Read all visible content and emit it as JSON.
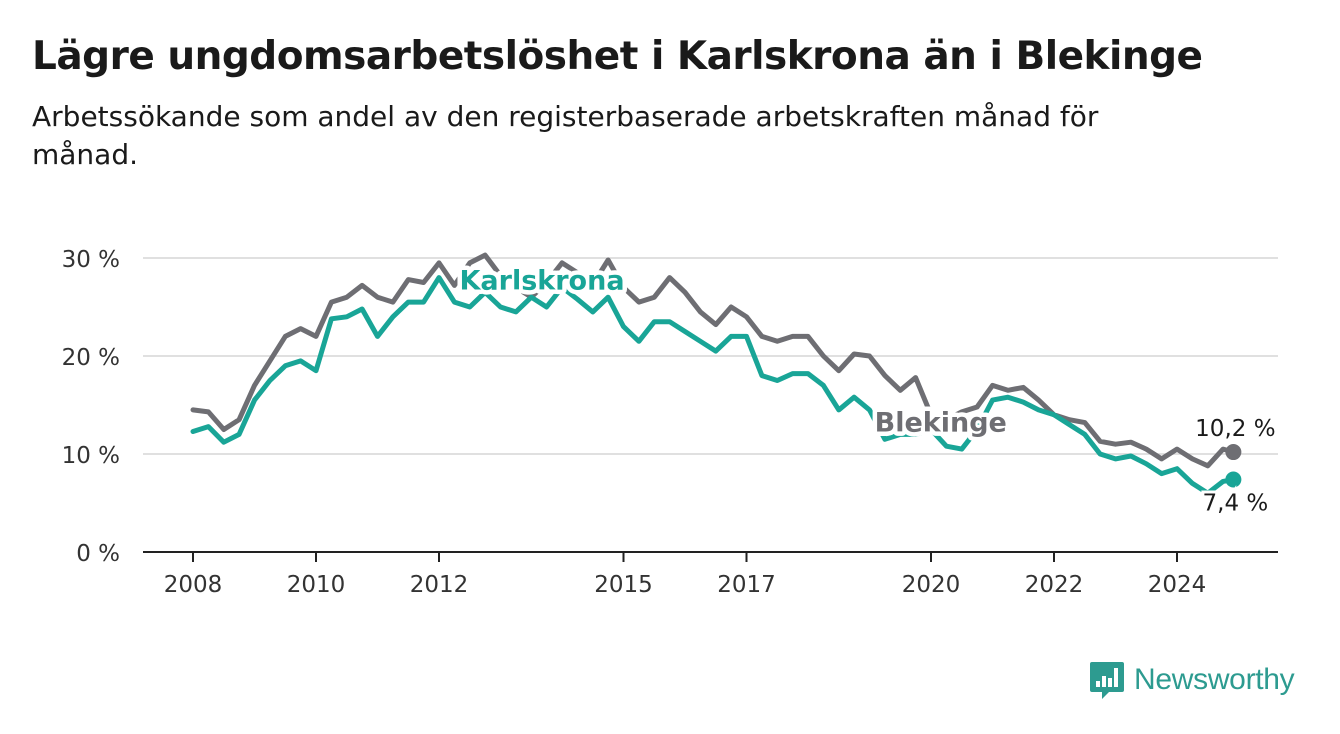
{
  "header": {
    "title": "Lägre ungdomsarbetslöshet i Karlskrona än i Blekinge",
    "subtitle": "Arbetssökande som andel av den registerbaserade arbetskraften månad för månad."
  },
  "brand": {
    "name": "Newsworthy",
    "icon": "newsworthy-logo-icon",
    "color": "#2d9b90"
  },
  "chart_data": {
    "type": "line",
    "x_tick_labels": [
      "2008",
      "2010",
      "2012",
      "2015",
      "2017",
      "2020",
      "2022",
      "2024"
    ],
    "y_tick_labels": [
      "0 %",
      "10 %",
      "20 %",
      "30 %"
    ],
    "ylim": [
      0,
      30
    ],
    "grid": true,
    "legend": "inline labels",
    "series": [
      {
        "name": "Blekinge",
        "color": "#6e6e73",
        "end_label": "10,2 %",
        "points": [
          [
            "2008-01",
            14.5
          ],
          [
            "2008-04",
            14.3
          ],
          [
            "2008-07",
            12.5
          ],
          [
            "2008-10",
            13.5
          ],
          [
            "2009-01",
            17.0
          ],
          [
            "2009-04",
            19.5
          ],
          [
            "2009-07",
            22.0
          ],
          [
            "2009-10",
            22.8
          ],
          [
            "2010-01",
            22.0
          ],
          [
            "2010-04",
            25.5
          ],
          [
            "2010-07",
            26.0
          ],
          [
            "2010-10",
            27.2
          ],
          [
            "2011-01",
            26.0
          ],
          [
            "2011-04",
            25.5
          ],
          [
            "2011-07",
            27.8
          ],
          [
            "2011-10",
            27.5
          ],
          [
            "2012-01",
            29.5
          ],
          [
            "2012-04",
            27.2
          ],
          [
            "2012-07",
            29.5
          ],
          [
            "2012-10",
            30.3
          ],
          [
            "2013-01",
            28.2
          ],
          [
            "2013-04",
            27.0
          ],
          [
            "2013-07",
            26.0
          ],
          [
            "2013-10",
            27.5
          ],
          [
            "2014-01",
            29.5
          ],
          [
            "2014-04",
            28.5
          ],
          [
            "2014-07",
            27.3
          ],
          [
            "2014-10",
            29.8
          ],
          [
            "2015-01",
            27.0
          ],
          [
            "2015-04",
            25.5
          ],
          [
            "2015-07",
            26.0
          ],
          [
            "2015-10",
            28.0
          ],
          [
            "2016-01",
            26.5
          ],
          [
            "2016-04",
            24.5
          ],
          [
            "2016-07",
            23.2
          ],
          [
            "2016-10",
            25.0
          ],
          [
            "2017-01",
            24.0
          ],
          [
            "2017-04",
            22.0
          ],
          [
            "2017-07",
            21.5
          ],
          [
            "2017-10",
            22.0
          ],
          [
            "2018-01",
            22.0
          ],
          [
            "2018-04",
            20.0
          ],
          [
            "2018-07",
            18.5
          ],
          [
            "2018-10",
            20.2
          ],
          [
            "2019-01",
            20.0
          ],
          [
            "2019-04",
            18.0
          ],
          [
            "2019-07",
            16.5
          ],
          [
            "2019-10",
            17.8
          ],
          [
            "2020-01",
            14.0
          ],
          [
            "2020-04",
            13.5
          ],
          [
            "2020-07",
            14.3
          ],
          [
            "2020-10",
            14.8
          ],
          [
            "2021-01",
            17.0
          ],
          [
            "2021-04",
            16.5
          ],
          [
            "2021-07",
            16.8
          ],
          [
            "2021-10",
            15.5
          ],
          [
            "2022-01",
            14.0
          ],
          [
            "2022-04",
            13.5
          ],
          [
            "2022-07",
            13.2
          ],
          [
            "2022-10",
            11.3
          ],
          [
            "2023-01",
            11.0
          ],
          [
            "2023-04",
            11.2
          ],
          [
            "2023-07",
            10.5
          ],
          [
            "2023-10",
            9.5
          ],
          [
            "2024-01",
            10.5
          ],
          [
            "2024-04",
            9.5
          ],
          [
            "2024-07",
            8.8
          ],
          [
            "2024-10",
            10.5
          ],
          [
            "2024-12",
            10.2
          ]
        ]
      },
      {
        "name": "Karlskrona",
        "color": "#19a597",
        "end_label": "7,4 %",
        "points": [
          [
            "2008-01",
            12.3
          ],
          [
            "2008-04",
            12.8
          ],
          [
            "2008-07",
            11.2
          ],
          [
            "2008-10",
            12.0
          ],
          [
            "2009-01",
            15.5
          ],
          [
            "2009-04",
            17.5
          ],
          [
            "2009-07",
            19.0
          ],
          [
            "2009-10",
            19.5
          ],
          [
            "2010-01",
            18.5
          ],
          [
            "2010-04",
            23.8
          ],
          [
            "2010-07",
            24.0
          ],
          [
            "2010-10",
            24.8
          ],
          [
            "2011-01",
            22.0
          ],
          [
            "2011-04",
            24.0
          ],
          [
            "2011-07",
            25.5
          ],
          [
            "2011-10",
            25.5
          ],
          [
            "2012-01",
            28.0
          ],
          [
            "2012-04",
            25.5
          ],
          [
            "2012-07",
            25.0
          ],
          [
            "2012-10",
            26.5
          ],
          [
            "2013-01",
            25.0
          ],
          [
            "2013-04",
            24.5
          ],
          [
            "2013-07",
            26.0
          ],
          [
            "2013-10",
            25.0
          ],
          [
            "2014-01",
            27.0
          ],
          [
            "2014-04",
            25.8
          ],
          [
            "2014-07",
            24.5
          ],
          [
            "2014-10",
            26.0
          ],
          [
            "2015-01",
            23.0
          ],
          [
            "2015-04",
            21.5
          ],
          [
            "2015-07",
            23.5
          ],
          [
            "2015-10",
            23.5
          ],
          [
            "2016-01",
            22.5
          ],
          [
            "2016-04",
            21.5
          ],
          [
            "2016-07",
            20.5
          ],
          [
            "2016-10",
            22.0
          ],
          [
            "2017-01",
            22.0
          ],
          [
            "2017-04",
            18.0
          ],
          [
            "2017-07",
            17.5
          ],
          [
            "2017-10",
            18.2
          ],
          [
            "2018-01",
            18.2
          ],
          [
            "2018-04",
            17.0
          ],
          [
            "2018-07",
            14.5
          ],
          [
            "2018-10",
            15.8
          ],
          [
            "2019-01",
            14.5
          ],
          [
            "2019-04",
            11.5
          ],
          [
            "2019-07",
            12.0
          ],
          [
            "2019-10",
            12.0
          ],
          [
            "2020-01",
            12.5
          ],
          [
            "2020-04",
            10.8
          ],
          [
            "2020-07",
            10.5
          ],
          [
            "2020-10",
            12.5
          ],
          [
            "2021-01",
            15.5
          ],
          [
            "2021-04",
            15.8
          ],
          [
            "2021-07",
            15.3
          ],
          [
            "2021-10",
            14.5
          ],
          [
            "2022-01",
            14.0
          ],
          [
            "2022-04",
            13.0
          ],
          [
            "2022-07",
            12.0
          ],
          [
            "2022-10",
            10.0
          ],
          [
            "2023-01",
            9.5
          ],
          [
            "2023-04",
            9.8
          ],
          [
            "2023-07",
            9.0
          ],
          [
            "2023-10",
            8.0
          ],
          [
            "2024-01",
            8.5
          ],
          [
            "2024-04",
            7.0
          ],
          [
            "2024-07",
            6.0
          ],
          [
            "2024-10",
            7.2
          ],
          [
            "2024-12",
            7.4
          ]
        ]
      }
    ]
  }
}
